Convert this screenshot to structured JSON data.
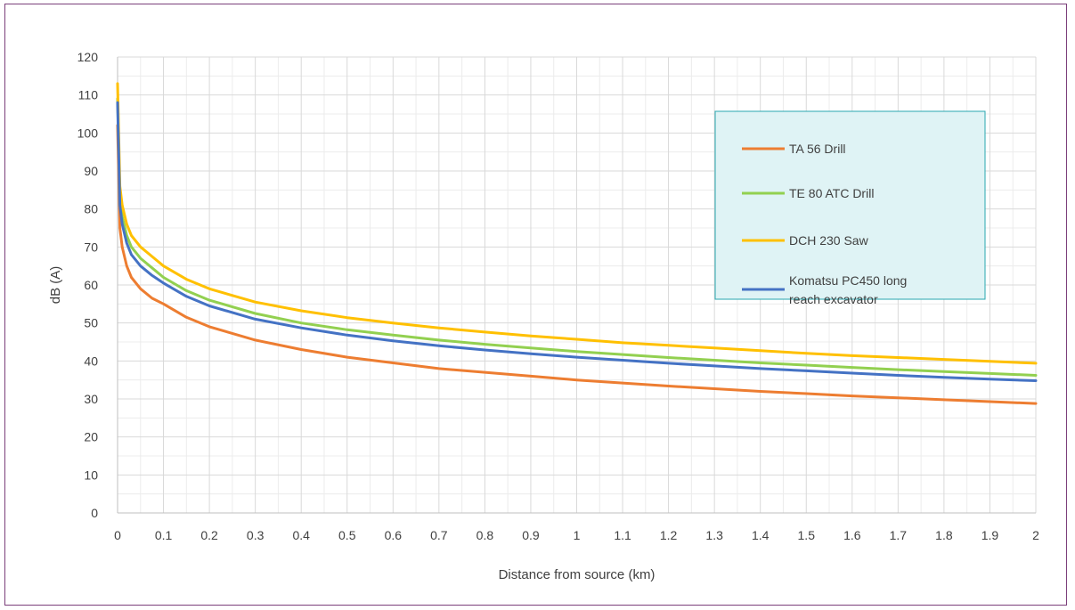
{
  "chart_data": {
    "type": "line",
    "title": "",
    "xlabel": "Distance from source (km)",
    "ylabel": "dB (A)",
    "xlim": [
      0,
      2
    ],
    "ylim": [
      0,
      120
    ],
    "x_ticks": [
      "0",
      "0.1",
      "0.2",
      "0.3",
      "0.4",
      "0.5",
      "0.6",
      "0.7",
      "0.8",
      "0.9",
      "1",
      "1.1",
      "1.2",
      "1.3",
      "1.4",
      "1.5",
      "1.6",
      "1.7",
      "1.8",
      "1.9",
      "2"
    ],
    "y_ticks": [
      "0",
      "10",
      "20",
      "30",
      "40",
      "50",
      "60",
      "70",
      "80",
      "90",
      "100",
      "110",
      "120"
    ],
    "grid": true,
    "legend_position": "top-right",
    "legend_background": "#dff3f5",
    "legend_border": "#2aa7b0",
    "x": [
      0,
      0.005,
      0.01,
      0.02,
      0.03,
      0.05,
      0.075,
      0.1,
      0.15,
      0.2,
      0.3,
      0.4,
      0.5,
      0.6,
      0.7,
      0.8,
      0.9,
      1.0,
      1.1,
      1.2,
      1.3,
      1.4,
      1.5,
      1.6,
      1.7,
      1.8,
      1.9,
      2.0
    ],
    "series": [
      {
        "name": "TA 56 Drill",
        "color": "#ed7d31",
        "values": [
          102,
          75,
          70,
          65,
          62,
          59,
          56.5,
          55,
          51.5,
          49,
          45.5,
          43,
          41,
          39.5,
          38,
          37,
          36,
          35,
          34.2,
          33.4,
          32.7,
          32,
          31.4,
          30.8,
          30.3,
          29.8,
          29.3,
          28.8
        ]
      },
      {
        "name": "TE 80 ATC Drill",
        "color": "#92d050",
        "values": [
          109,
          83,
          78,
          73,
          70,
          67,
          64.5,
          62,
          58.5,
          56,
          52.5,
          50,
          48.2,
          46.8,
          45.5,
          44.4,
          43.4,
          42.5,
          41.7,
          40.9,
          40.2,
          39.5,
          38.9,
          38.3,
          37.7,
          37.2,
          36.7,
          36.2
        ]
      },
      {
        "name": "DCH 230 Saw",
        "color": "#ffc000",
        "values": [
          113,
          86,
          81,
          76,
          73,
          70,
          67.5,
          65,
          61.5,
          59,
          55.5,
          53.2,
          51.4,
          50,
          48.7,
          47.6,
          46.6,
          45.7,
          44.8,
          44.1,
          43.4,
          42.7,
          42,
          41.4,
          40.9,
          40.4,
          39.9,
          39.4
        ]
      },
      {
        "name": "Komatsu PC450 long reach excavator",
        "legend_lines": [
          "Komatsu PC450 long",
          "reach excavator"
        ],
        "color": "#4472c4",
        "values": [
          108,
          81,
          76,
          71,
          68,
          65,
          62.5,
          60.5,
          57,
          54.5,
          51,
          48.7,
          46.8,
          45.3,
          44,
          42.9,
          41.9,
          41,
          40.2,
          39.4,
          38.7,
          38,
          37.4,
          36.8,
          36.2,
          35.7,
          35.2,
          34.8
        ]
      }
    ]
  }
}
